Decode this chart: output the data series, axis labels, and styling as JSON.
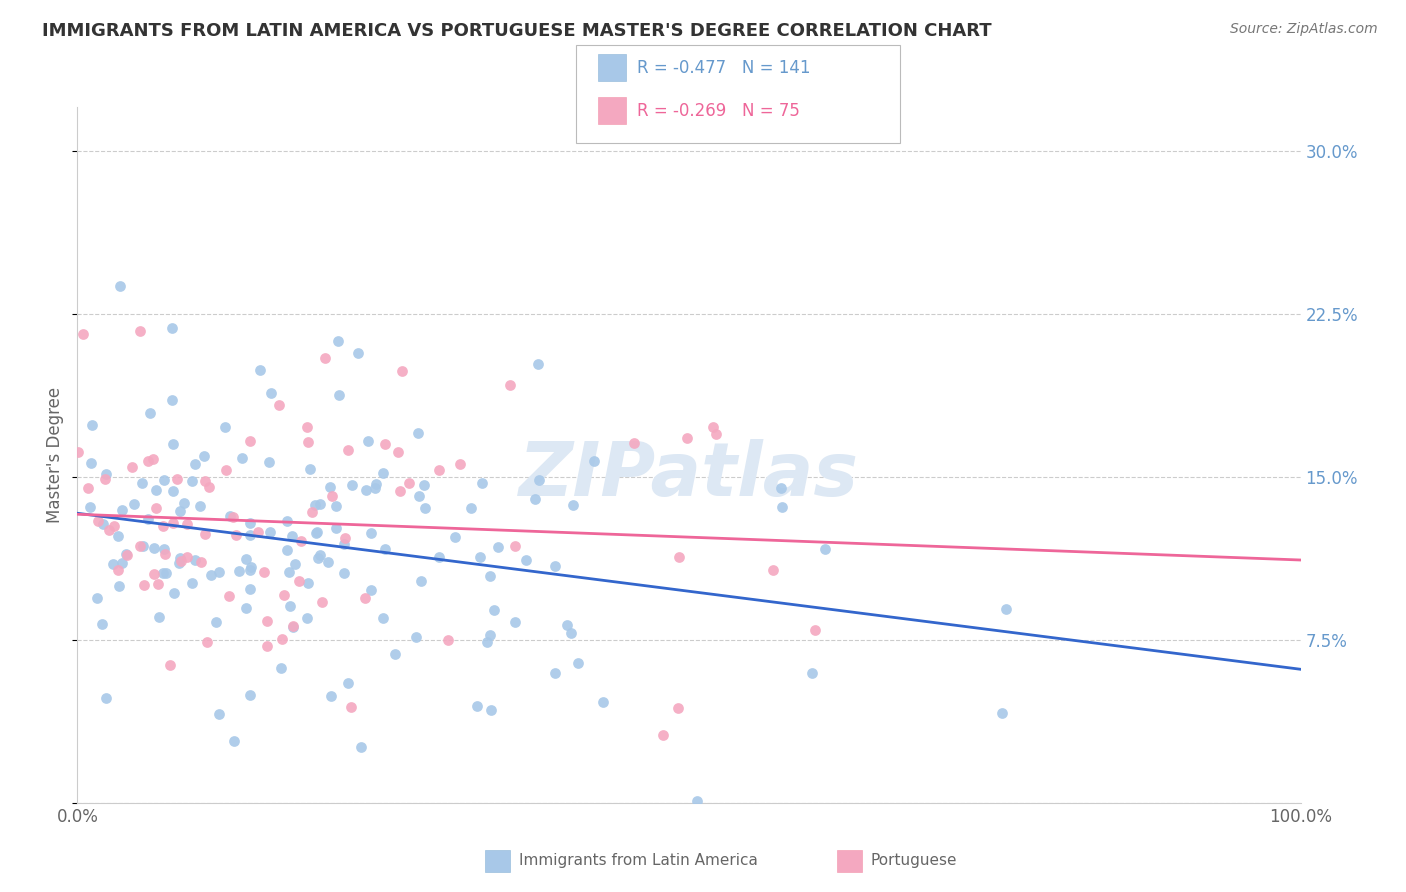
{
  "title": "IMMIGRANTS FROM LATIN AMERICA VS PORTUGUESE MASTER'S DEGREE CORRELATION CHART",
  "source": "Source: ZipAtlas.com",
  "ylabel": "Master's Degree",
  "xlim": [
    0.0,
    1.0
  ],
  "ylim": [
    0.0,
    0.32
  ],
  "xticks": [
    0.0,
    0.25,
    0.5,
    0.75,
    1.0
  ],
  "xticklabels": [
    "0.0%",
    "",
    "",
    "",
    "100.0%"
  ],
  "yticks": [
    0.0,
    0.075,
    0.15,
    0.225,
    0.3
  ],
  "yticklabels_right": [
    "",
    "7.5%",
    "15.0%",
    "22.5%",
    "30.0%"
  ],
  "legend1_label": "Immigrants from Latin America",
  "legend2_label": "Portuguese",
  "r1": -0.477,
  "n1": 141,
  "r2": -0.269,
  "n2": 75,
  "color1": "#A8C8E8",
  "color2": "#F4A8C0",
  "line1_color": "#3366CC",
  "line2_color": "#EE6699",
  "watermark": "ZIPatlas",
  "background_color": "#FFFFFF",
  "grid_color": "#CCCCCC",
  "title_color": "#333333",
  "axis_label_color": "#666666",
  "ytick_color": "#6699CC",
  "source_color": "#777777",
  "seed1": 42,
  "seed2": 77
}
